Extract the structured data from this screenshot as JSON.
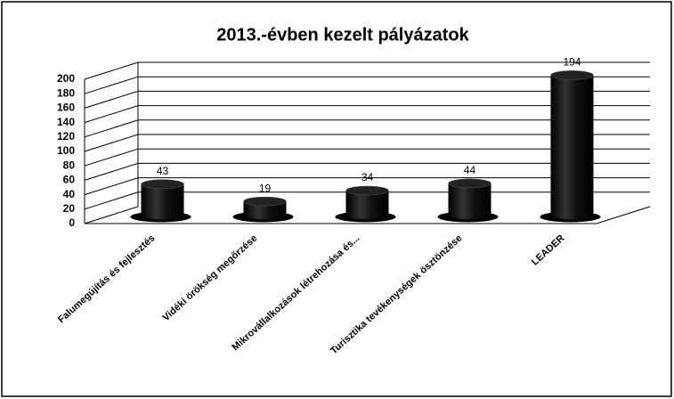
{
  "chart_data": {
    "type": "bar",
    "title": "2013.-évben kezelt pályázatok",
    "categories": [
      "Falumegújítás és fejlesztés",
      "Vidéki örökség megőrzése",
      "Mikrovállalkozások létrehozása és...",
      "Turisztika tevékenységek ösztönzése",
      "LEADER"
    ],
    "values": [
      43,
      19,
      34,
      44,
      194
    ],
    "color": "#000000",
    "ylim": [
      0,
      200
    ],
    "yticks": [
      0,
      20,
      40,
      60,
      80,
      100,
      120,
      140,
      160,
      180,
      200
    ],
    "grid": true
  }
}
